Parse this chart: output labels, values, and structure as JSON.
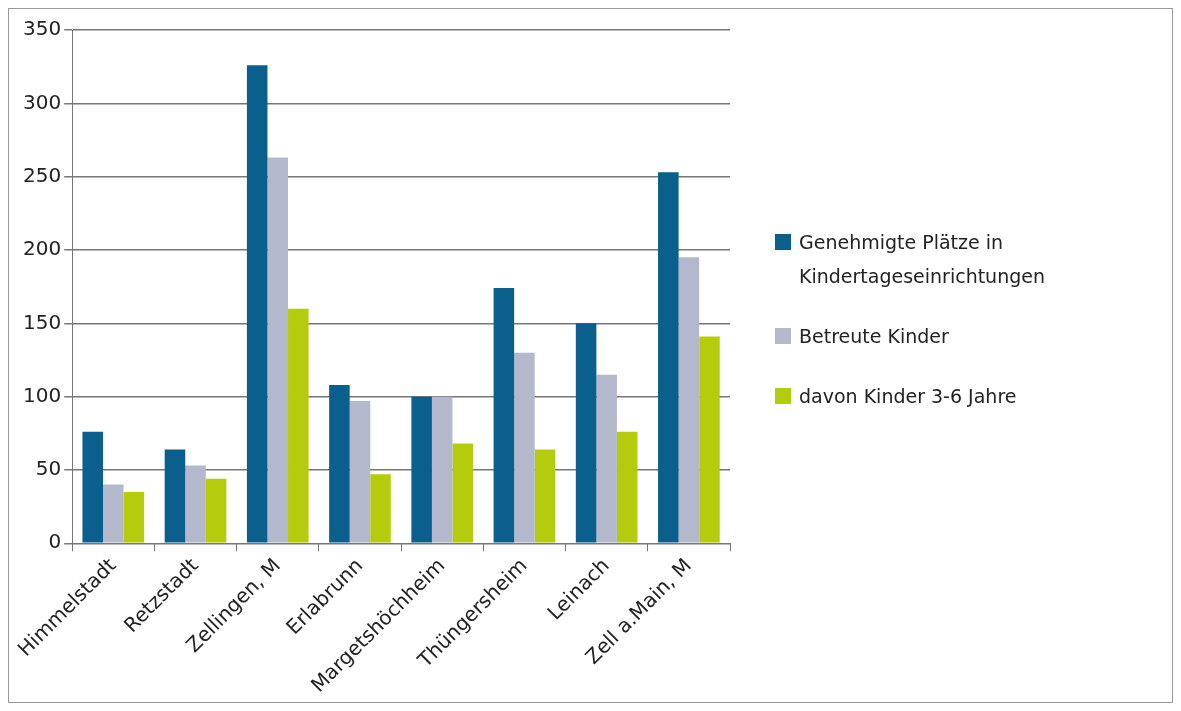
{
  "chart_data": {
    "type": "bar",
    "categories": [
      "Himmelstadt",
      "Retzstadt",
      "Zellingen, M",
      "Erlabrunn",
      "Margetshöchheim",
      "Thüngersheim",
      "Leinach",
      "Zell a.Main, M"
    ],
    "series": [
      {
        "name": "Genehmigte Plätze in Kindertageseinrichtungen",
        "color": "#0b5f8c",
        "values": [
          76,
          64,
          326,
          108,
          100,
          174,
          150,
          253
        ]
      },
      {
        "name": "Betreute Kinder",
        "color": "#b4b8cc",
        "values": [
          40,
          53,
          263,
          97,
          100,
          130,
          115,
          195
        ]
      },
      {
        "name": "davon Kinder 3-6 Jahre",
        "color": "#b5cc0c",
        "values": [
          35,
          44,
          160,
          47,
          68,
          64,
          76,
          141
        ]
      }
    ],
    "ylim": [
      0,
      350
    ],
    "yticks": [
      0,
      50,
      100,
      150,
      200,
      250,
      300,
      350
    ],
    "grid": "y",
    "legend": "right"
  }
}
